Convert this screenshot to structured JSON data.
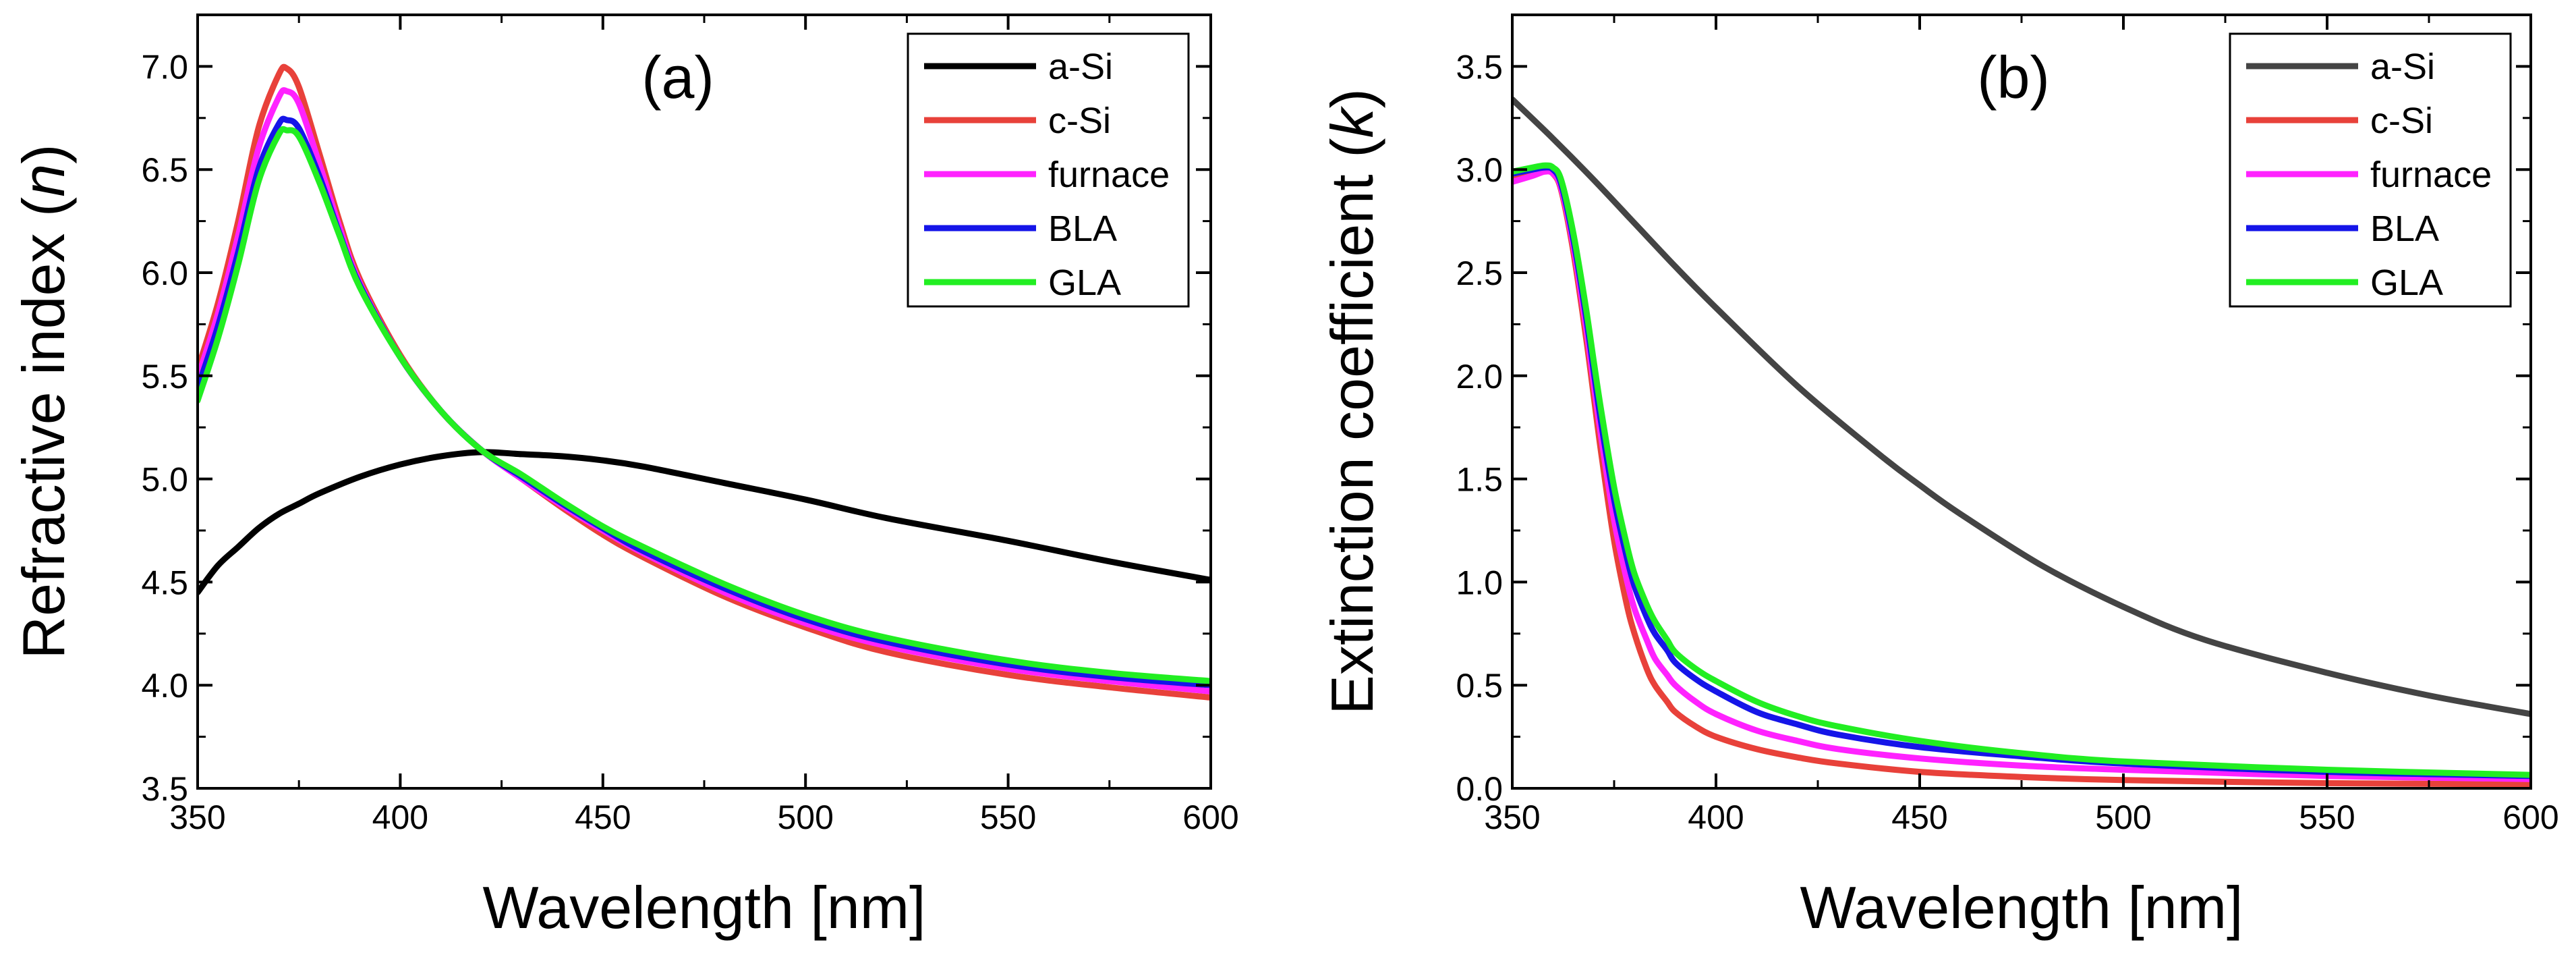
{
  "chart_data": [
    {
      "type": "line",
      "panel_label": "(a)",
      "xlabel": "Wavelength [nm]",
      "ylabel_main": "Refractive index (",
      "ylabel_italic": "n",
      "ylabel_close": ")",
      "xlim": [
        350,
        600
      ],
      "ylim": [
        3.5,
        7.25
      ],
      "xticks": [
        350,
        400,
        450,
        500,
        550,
        600
      ],
      "xtick_labels": [
        "350",
        "400",
        "450",
        "500",
        "550",
        "600"
      ],
      "yticks": [
        3.5,
        4.0,
        4.5,
        5.0,
        5.5,
        6.0,
        6.5,
        7.0
      ],
      "ytick_labels": [
        "3.5",
        "4.0",
        "4.5",
        "5.0",
        "5.5",
        "6.0",
        "6.5",
        "7.0"
      ],
      "legend_position": "top-right",
      "series": [
        {
          "name": "a-Si",
          "color": "#000000",
          "x": [
            350,
            355,
            360,
            365,
            370,
            375,
            380,
            390,
            400,
            410,
            420,
            430,
            440,
            450,
            460,
            480,
            500,
            520,
            550,
            575,
            600
          ],
          "y": [
            4.45,
            4.58,
            4.67,
            4.76,
            4.83,
            4.88,
            4.93,
            5.01,
            5.07,
            5.11,
            5.13,
            5.12,
            5.11,
            5.09,
            5.06,
            4.98,
            4.9,
            4.81,
            4.7,
            4.6,
            4.51
          ]
        },
        {
          "name": "c-Si",
          "color": "#e8413a",
          "x": [
            350,
            355,
            360,
            365,
            370,
            372,
            375,
            380,
            385,
            390,
            400,
            410,
            420,
            430,
            440,
            450,
            460,
            480,
            500,
            520,
            550,
            575,
            600
          ],
          "y": [
            5.53,
            5.85,
            6.25,
            6.7,
            6.96,
            6.99,
            6.9,
            6.58,
            6.25,
            5.97,
            5.6,
            5.33,
            5.14,
            5.0,
            4.86,
            4.73,
            4.62,
            4.43,
            4.28,
            4.16,
            4.05,
            3.99,
            3.94
          ]
        },
        {
          "name": "furnace",
          "color": "#ff22ff",
          "x": [
            350,
            355,
            360,
            365,
            370,
            372,
            375,
            380,
            385,
            390,
            400,
            410,
            420,
            430,
            440,
            450,
            460,
            480,
            500,
            520,
            550,
            575,
            600
          ],
          "y": [
            5.49,
            5.8,
            6.18,
            6.6,
            6.85,
            6.88,
            6.82,
            6.53,
            6.22,
            5.95,
            5.59,
            5.33,
            5.14,
            5.0,
            4.87,
            4.75,
            4.64,
            4.45,
            4.3,
            4.19,
            4.08,
            4.02,
            3.97
          ]
        },
        {
          "name": "BLA",
          "color": "#1515e8",
          "x": [
            350,
            355,
            360,
            365,
            370,
            372,
            375,
            380,
            385,
            390,
            400,
            410,
            420,
            430,
            440,
            450,
            460,
            480,
            500,
            520,
            550,
            575,
            600
          ],
          "y": [
            5.44,
            5.74,
            6.1,
            6.5,
            6.72,
            6.74,
            6.7,
            6.47,
            6.19,
            5.94,
            5.59,
            5.33,
            5.14,
            5.01,
            4.88,
            4.76,
            4.65,
            4.47,
            4.32,
            4.21,
            4.1,
            4.04,
            4.0
          ]
        },
        {
          "name": "GLA",
          "color": "#22ee22",
          "x": [
            350,
            355,
            360,
            365,
            370,
            372,
            375,
            380,
            385,
            390,
            400,
            410,
            420,
            430,
            440,
            450,
            460,
            480,
            500,
            520,
            550,
            575,
            600
          ],
          "y": [
            5.38,
            5.68,
            6.04,
            6.44,
            6.67,
            6.69,
            6.66,
            6.44,
            6.18,
            5.93,
            5.59,
            5.33,
            5.14,
            5.02,
            4.89,
            4.77,
            4.67,
            4.49,
            4.34,
            4.23,
            4.12,
            4.06,
            4.02
          ]
        }
      ]
    },
    {
      "type": "line",
      "panel_label": "(b)",
      "xlabel": "Wavelength [nm]",
      "ylabel_main": "Extinction coefficient (",
      "ylabel_italic": "k",
      "ylabel_close": ")",
      "xlim": [
        350,
        600
      ],
      "ylim": [
        0.0,
        3.75
      ],
      "xticks": [
        350,
        400,
        450,
        500,
        550,
        600
      ],
      "xtick_labels": [
        "350",
        "400",
        "450",
        "500",
        "550",
        "600"
      ],
      "yticks": [
        0.0,
        0.5,
        1.0,
        1.5,
        2.0,
        2.5,
        3.0,
        3.5
      ],
      "ytick_labels": [
        "0.0",
        "0.5",
        "1.0",
        "1.5",
        "2.0",
        "2.5",
        "3.0",
        "3.5"
      ],
      "legend_position": "top-right",
      "series": [
        {
          "name": "a-Si",
          "color": "#444444",
          "x": [
            350,
            360,
            370,
            380,
            390,
            400,
            420,
            440,
            450,
            460,
            480,
            500,
            520,
            550,
            575,
            600
          ],
          "y": [
            3.34,
            3.15,
            2.95,
            2.74,
            2.53,
            2.33,
            1.95,
            1.62,
            1.47,
            1.33,
            1.08,
            0.88,
            0.72,
            0.56,
            0.45,
            0.36
          ]
        },
        {
          "name": "c-Si",
          "color": "#e8413a",
          "x": [
            350,
            355,
            358,
            360,
            362,
            365,
            368,
            370,
            372,
            375,
            378,
            380,
            383,
            385,
            388,
            390,
            395,
            400,
            410,
            420,
            430,
            450,
            475,
            500,
            550,
            600
          ],
          "y": [
            2.96,
            2.99,
            3.0,
            2.98,
            2.9,
            2.6,
            2.2,
            1.9,
            1.6,
            1.2,
            0.9,
            0.75,
            0.58,
            0.5,
            0.42,
            0.37,
            0.3,
            0.25,
            0.19,
            0.15,
            0.12,
            0.08,
            0.055,
            0.04,
            0.025,
            0.02
          ]
        },
        {
          "name": "furnace",
          "color": "#ff22ff",
          "x": [
            350,
            355,
            358,
            360,
            362,
            365,
            368,
            370,
            372,
            375,
            378,
            380,
            383,
            385,
            388,
            390,
            395,
            400,
            410,
            420,
            430,
            450,
            475,
            500,
            550,
            600
          ],
          "y": [
            2.94,
            2.97,
            2.99,
            2.98,
            2.91,
            2.63,
            2.25,
            1.96,
            1.68,
            1.3,
            1.02,
            0.87,
            0.72,
            0.63,
            0.55,
            0.5,
            0.42,
            0.36,
            0.28,
            0.23,
            0.19,
            0.145,
            0.11,
            0.09,
            0.06,
            0.045
          ]
        },
        {
          "name": "BLA",
          "color": "#1515e8",
          "x": [
            350,
            355,
            358,
            360,
            362,
            365,
            368,
            370,
            372,
            375,
            378,
            380,
            383,
            385,
            388,
            390,
            395,
            400,
            410,
            420,
            430,
            450,
            475,
            500,
            550,
            600
          ],
          "y": [
            2.98,
            3.0,
            3.01,
            3.0,
            2.93,
            2.66,
            2.3,
            2.02,
            1.75,
            1.4,
            1.13,
            0.98,
            0.83,
            0.75,
            0.67,
            0.61,
            0.53,
            0.47,
            0.37,
            0.31,
            0.26,
            0.2,
            0.155,
            0.12,
            0.08,
            0.06
          ]
        },
        {
          "name": "GLA",
          "color": "#22ee22",
          "x": [
            350,
            355,
            358,
            360,
            362,
            365,
            368,
            370,
            372,
            375,
            378,
            380,
            383,
            385,
            388,
            390,
            395,
            400,
            410,
            420,
            430,
            450,
            475,
            500,
            550,
            600
          ],
          "y": [
            2.99,
            3.01,
            3.02,
            3.01,
            2.95,
            2.69,
            2.34,
            2.07,
            1.81,
            1.46,
            1.19,
            1.04,
            0.89,
            0.81,
            0.72,
            0.66,
            0.58,
            0.52,
            0.42,
            0.35,
            0.3,
            0.23,
            0.17,
            0.13,
            0.09,
            0.065
          ]
        }
      ]
    }
  ]
}
